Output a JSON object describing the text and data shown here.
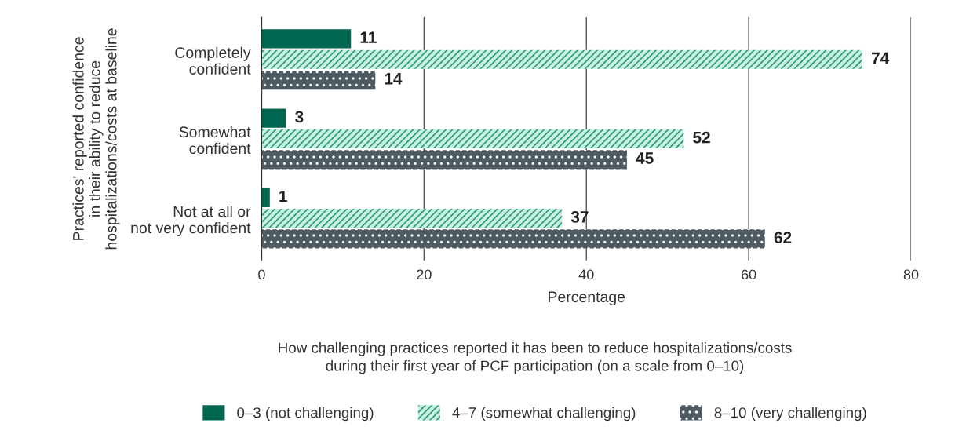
{
  "chart_data": {
    "type": "bar",
    "orientation": "horizontal",
    "categories": [
      "Completely\nconfident",
      "Somewhat\nconfident",
      "Not at all or\nnot very confident"
    ],
    "series": [
      {
        "name": "0–3 (not challenging)",
        "color": "#00664f",
        "values": [
          11,
          3,
          1
        ]
      },
      {
        "name": "4–7 (somewhat challenging)",
        "color": "#c9f0e2",
        "values": [
          74,
          52,
          37
        ]
      },
      {
        "name": "8–10 (very challenging)",
        "color": "#4f5b63",
        "values": [
          14,
          45,
          62
        ]
      }
    ],
    "xlim": [
      0,
      80
    ],
    "xticks": [
      0,
      20,
      40,
      60,
      80
    ],
    "xlabel": "Percentage",
    "ylabel": "Practices' reported confidence\nin their ability to reduce\nhospitalizations/costs at baseline",
    "legend_title": "How challenging practices reported it has been to reduce hospitalizations/costs\nduring their first year of PCF participation (on a scale from 0–10)",
    "legend": "bottom",
    "grid": "x",
    "data_labels": true
  }
}
